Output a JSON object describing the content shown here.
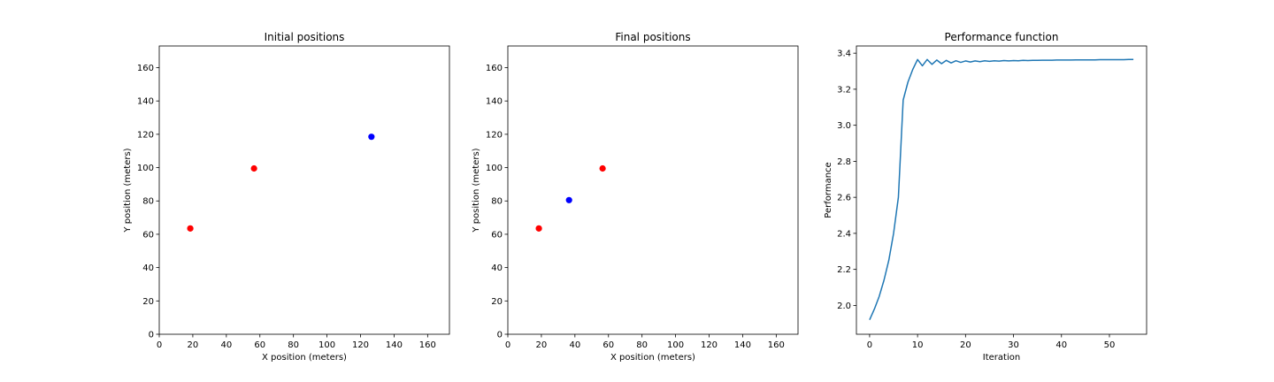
{
  "chart_data": [
    {
      "type": "scatter",
      "title": "Initial positions",
      "xlabel": "X position (meters)",
      "ylabel": "Y position (meters)",
      "xlim": [
        0,
        173
      ],
      "ylim": [
        0,
        173
      ],
      "xticks": [
        0,
        20,
        40,
        60,
        80,
        100,
        120,
        140,
        160
      ],
      "yticks": [
        0,
        20,
        40,
        60,
        80,
        100,
        120,
        140,
        160
      ],
      "grid": false,
      "points": [
        {
          "x": 18.5,
          "y": 63.5,
          "color": "#ff0000"
        },
        {
          "x": 56.5,
          "y": 99.5,
          "color": "#ff0000"
        },
        {
          "x": 126.5,
          "y": 118.5,
          "color": "#0000ff"
        }
      ]
    },
    {
      "type": "scatter",
      "title": "Final positions",
      "xlabel": "X position (meters)",
      "ylabel": "Y position (meters)",
      "xlim": [
        0,
        173
      ],
      "ylim": [
        0,
        173
      ],
      "xticks": [
        0,
        20,
        40,
        60,
        80,
        100,
        120,
        140,
        160
      ],
      "yticks": [
        0,
        20,
        40,
        60,
        80,
        100,
        120,
        140,
        160
      ],
      "grid": false,
      "points": [
        {
          "x": 18.5,
          "y": 63.5,
          "color": "#ff0000"
        },
        {
          "x": 56.5,
          "y": 99.5,
          "color": "#ff0000"
        },
        {
          "x": 36.5,
          "y": 80.5,
          "color": "#0000ff"
        }
      ]
    },
    {
      "type": "line",
      "title": "Performance function",
      "xlabel": "Iteration",
      "ylabel": "Performance",
      "xlim": [
        -2.75,
        57.75
      ],
      "ylim": [
        1.84,
        3.44
      ],
      "xticks": [
        0,
        10,
        20,
        30,
        40,
        50
      ],
      "yticks": [
        "2.0",
        "2.2",
        "2.4",
        "2.6",
        "2.8",
        "3.0",
        "3.2",
        "3.4"
      ],
      "grid": false,
      "color": "#1f77b4",
      "x": [
        0,
        1,
        2,
        3,
        4,
        5,
        6,
        7,
        8,
        9,
        10,
        11,
        12,
        13,
        14,
        15,
        16,
        17,
        18,
        19,
        20,
        21,
        22,
        23,
        24,
        25,
        26,
        27,
        28,
        29,
        30,
        31,
        32,
        33,
        34,
        35,
        36,
        37,
        38,
        39,
        40,
        41,
        42,
        43,
        44,
        45,
        46,
        47,
        48,
        49,
        50,
        51,
        52,
        53,
        54,
        55
      ],
      "y": [
        1.92,
        1.98,
        2.05,
        2.14,
        2.25,
        2.4,
        2.6,
        3.14,
        3.24,
        3.31,
        3.365,
        3.33,
        3.365,
        3.338,
        3.362,
        3.342,
        3.36,
        3.346,
        3.358,
        3.349,
        3.357,
        3.351,
        3.357,
        3.353,
        3.358,
        3.355,
        3.358,
        3.356,
        3.359,
        3.357,
        3.359,
        3.358,
        3.36,
        3.359,
        3.36,
        3.36,
        3.361,
        3.361,
        3.361,
        3.362,
        3.362,
        3.362,
        3.362,
        3.363,
        3.363,
        3.363,
        3.363,
        3.363,
        3.364,
        3.364,
        3.364,
        3.364,
        3.364,
        3.364,
        3.365,
        3.365
      ]
    }
  ]
}
